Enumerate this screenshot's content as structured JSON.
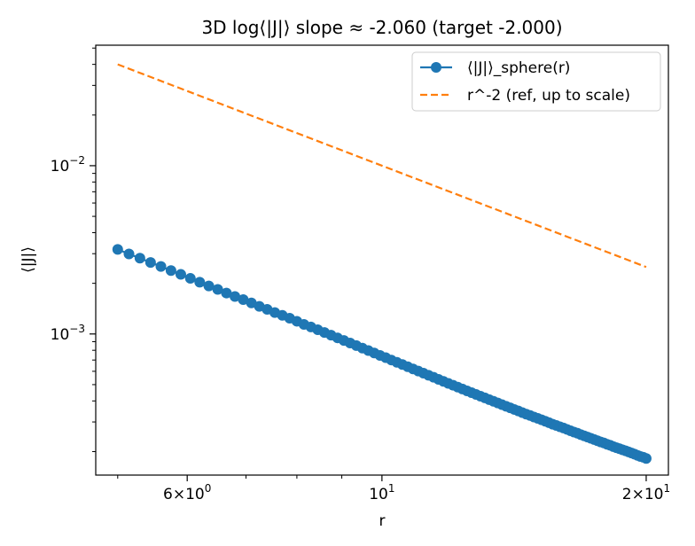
{
  "chart_data": {
    "type": "line",
    "title": "3D log⟨|J|⟩ slope ≈ -2.060 (target -2.000)",
    "xlabel": "r",
    "ylabel": "⟨|J|⟩",
    "xscale": "log",
    "yscale": "log",
    "xlim": [
      4.72,
      21.2
    ],
    "ylim": [
      0.000145,
      0.052
    ],
    "grid": false,
    "legend_position": "upper right",
    "xticks": [
      {
        "value": 6,
        "base": "6×10",
        "exp": "0"
      },
      {
        "value": 10,
        "base": "10",
        "exp": "1"
      },
      {
        "value": 20,
        "base": "2×10",
        "exp": "1"
      }
    ],
    "yticks": [
      {
        "value": 0.001,
        "base": "10",
        "exp": "−3"
      },
      {
        "value": 0.01,
        "base": "10",
        "exp": "−2"
      }
    ],
    "series": [
      {
        "name": "⟨|J|⟩_sphere(r)",
        "color": "#1f77b4",
        "style": "solid-with-circles",
        "x": [
          5.0,
          5.15,
          5.3,
          5.45,
          5.6,
          5.75,
          5.9,
          6.05,
          6.2,
          6.35,
          6.5,
          6.65,
          6.8,
          6.95,
          7.1,
          7.25,
          7.4,
          7.55,
          7.7,
          7.85,
          8.0,
          8.15,
          8.3,
          8.45,
          8.6,
          8.75,
          8.9,
          9.05,
          9.2,
          9.35,
          9.5,
          9.65,
          9.8,
          9.95,
          10.1,
          10.25,
          10.4,
          10.55,
          10.7,
          10.85,
          11.0,
          11.15,
          11.3,
          11.45,
          11.6,
          11.75,
          11.9,
          12.05,
          12.2,
          12.35,
          12.5,
          12.65,
          12.8,
          12.95,
          13.1,
          13.25,
          13.4,
          13.55,
          13.7,
          13.85,
          14.0,
          14.15,
          14.3,
          14.45,
          14.6,
          14.75,
          14.9,
          15.05,
          15.2,
          15.35,
          15.5,
          15.65,
          15.8,
          15.95,
          16.1,
          16.25,
          16.4,
          16.55,
          16.7,
          16.85,
          17.0,
          17.15,
          17.3,
          17.45,
          17.6,
          17.75,
          17.9,
          18.05,
          18.2,
          18.35,
          18.5,
          18.65,
          18.8,
          18.95,
          19.1,
          19.25,
          19.4,
          19.55,
          19.7,
          19.85,
          20.0
        ],
        "y": [
          0.00318,
          0.00299,
          0.00282,
          0.00266,
          0.00252,
          0.00238,
          0.00226,
          0.00214,
          0.00203,
          0.00193,
          0.00184,
          0.00175,
          0.00167,
          0.0016,
          0.00153,
          0.00146,
          0.0014,
          0.00134,
          0.00129,
          0.00124,
          0.00119,
          0.00114,
          0.0011,
          0.00106,
          0.00102,
          0.000984,
          0.000948,
          0.000915,
          0.000883,
          0.000853,
          0.000824,
          0.000797,
          0.000771,
          0.000746,
          0.000723,
          0.0007,
          0.000679,
          0.000658,
          0.000639,
          0.00062,
          0.000602,
          0.000585,
          0.000568,
          0.000553,
          0.000537,
          0.000523,
          0.000509,
          0.000496,
          0.000483,
          0.000471,
          0.000459,
          0.000448,
          0.000437,
          0.000427,
          0.000417,
          0.000407,
          0.000398,
          0.000389,
          0.00038,
          0.000372,
          0.000364,
          0.000356,
          0.000349,
          0.000341,
          0.000334,
          0.000328,
          0.000321,
          0.000315,
          0.000309,
          0.000303,
          0.000297,
          0.000291,
          0.000286,
          0.000281,
          0.000276,
          0.000271,
          0.000266,
          0.000261,
          0.000257,
          0.000252,
          0.000248,
          0.000244,
          0.00024,
          0.000236,
          0.000232,
          0.000228,
          0.000225,
          0.000221,
          0.000218,
          0.000214,
          0.000211,
          0.000208,
          0.000205,
          0.000202,
          0.000199,
          0.000196,
          0.000193,
          0.00019,
          0.000187,
          0.000185,
          0.000182
        ]
      },
      {
        "name": "r^-2 (ref, up to scale)",
        "color": "#ff7f0e",
        "style": "dashed",
        "x": [
          5.0,
          6.0,
          8.0,
          10.0,
          12.0,
          14.0,
          16.0,
          18.0,
          20.0
        ],
        "y": [
          0.04,
          0.02778,
          0.015625,
          0.01,
          0.006944,
          0.005102,
          0.003906,
          0.003086,
          0.0025
        ]
      }
    ]
  }
}
